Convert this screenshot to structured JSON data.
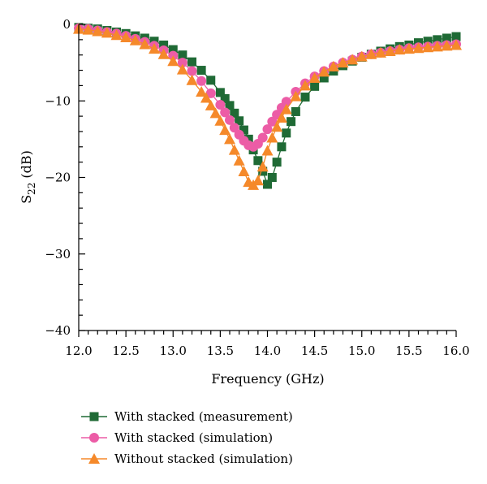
{
  "chart_data": {
    "type": "scatter",
    "xlabel": "Frequency (GHz)",
    "ylabel_base": "S",
    "ylabel_sub": "22",
    "ylabel_unit": " (dB)",
    "xlim": [
      12.0,
      16.0
    ],
    "ylim": [
      -40,
      0
    ],
    "x_ticks": [
      12.0,
      12.5,
      13.0,
      13.5,
      14.0,
      14.5,
      15.0,
      15.5,
      16.0
    ],
    "x_tick_labels": [
      "12.0",
      "12.5",
      "13.0",
      "13.5",
      "14.0",
      "14.5",
      "15.0",
      "15.5",
      "16.0"
    ],
    "y_ticks": [
      0,
      -10,
      -20,
      -30,
      -40
    ],
    "y_tick_labels": [
      "0",
      "−10",
      "−20",
      "−30",
      "−40"
    ],
    "grid": false,
    "legend_position": "bottom",
    "series": [
      {
        "name": "With stacked (measurement)",
        "marker": "square",
        "color": "#1f6a35",
        "x": [
          12.0,
          12.1,
          12.2,
          12.3,
          12.4,
          12.5,
          12.6,
          12.7,
          12.8,
          12.9,
          13.0,
          13.1,
          13.2,
          13.3,
          13.4,
          13.5,
          13.55,
          13.6,
          13.65,
          13.7,
          13.75,
          13.8,
          13.85,
          13.9,
          13.95,
          14.0,
          14.05,
          14.1,
          14.15,
          14.2,
          14.25,
          14.3,
          14.4,
          14.5,
          14.6,
          14.7,
          14.8,
          14.9,
          15.0,
          15.1,
          15.2,
          15.3,
          15.4,
          15.5,
          15.6,
          15.7,
          15.8,
          15.9,
          16.0
        ],
        "y": [
          -0.4,
          -0.5,
          -0.6,
          -0.8,
          -1.0,
          -1.2,
          -1.5,
          -1.8,
          -2.2,
          -2.7,
          -3.3,
          -4.0,
          -4.9,
          -6.0,
          -7.3,
          -8.9,
          -9.7,
          -10.6,
          -11.6,
          -12.6,
          -13.8,
          -15.0,
          -16.4,
          -17.8,
          -19.2,
          -20.9,
          -20.0,
          -18.0,
          -16.0,
          -14.2,
          -12.7,
          -11.4,
          -9.5,
          -8.1,
          -7.0,
          -6.1,
          -5.4,
          -4.8,
          -4.3,
          -3.9,
          -3.5,
          -3.2,
          -2.9,
          -2.7,
          -2.4,
          -2.2,
          -2.0,
          -1.8,
          -1.6
        ]
      },
      {
        "name": "With stacked (simulation)",
        "marker": "circle",
        "color": "#ec5ca6",
        "x": [
          12.0,
          12.1,
          12.2,
          12.3,
          12.4,
          12.5,
          12.6,
          12.7,
          12.8,
          12.9,
          13.0,
          13.1,
          13.2,
          13.3,
          13.4,
          13.5,
          13.55,
          13.6,
          13.65,
          13.7,
          13.75,
          13.8,
          13.85,
          13.9,
          13.95,
          14.0,
          14.05,
          14.1,
          14.15,
          14.2,
          14.3,
          14.4,
          14.5,
          14.6,
          14.7,
          14.8,
          14.9,
          15.0,
          15.1,
          15.2,
          15.3,
          15.4,
          15.5,
          15.6,
          15.7,
          15.8,
          15.9,
          16.0
        ],
        "y": [
          -0.5,
          -0.6,
          -0.8,
          -1.0,
          -1.2,
          -1.5,
          -1.9,
          -2.3,
          -2.8,
          -3.4,
          -4.1,
          -5.0,
          -6.1,
          -7.4,
          -9.0,
          -10.5,
          -11.5,
          -12.5,
          -13.5,
          -14.4,
          -15.2,
          -15.8,
          -16.0,
          -15.6,
          -14.8,
          -13.7,
          -12.7,
          -11.8,
          -10.9,
          -10.1,
          -8.8,
          -7.7,
          -6.8,
          -6.1,
          -5.5,
          -5.0,
          -4.6,
          -4.2,
          -3.9,
          -3.7,
          -3.5,
          -3.3,
          -3.1,
          -3.0,
          -2.9,
          -2.8,
          -2.7,
          -2.6
        ]
      },
      {
        "name": "Without stacked (simulation)",
        "marker": "triangle",
        "color": "#f5892a",
        "x": [
          12.0,
          12.1,
          12.2,
          12.3,
          12.4,
          12.5,
          12.6,
          12.7,
          12.8,
          12.9,
          13.0,
          13.1,
          13.2,
          13.3,
          13.35,
          13.4,
          13.45,
          13.5,
          13.55,
          13.6,
          13.65,
          13.7,
          13.75,
          13.8,
          13.85,
          13.9,
          13.95,
          14.0,
          14.05,
          14.1,
          14.15,
          14.2,
          14.3,
          14.4,
          14.5,
          14.6,
          14.7,
          14.8,
          14.9,
          15.0,
          15.1,
          15.2,
          15.3,
          15.4,
          15.5,
          15.6,
          15.7,
          15.8,
          15.9,
          16.0
        ],
        "y": [
          -0.6,
          -0.7,
          -0.9,
          -1.1,
          -1.4,
          -1.7,
          -2.1,
          -2.6,
          -3.2,
          -3.9,
          -4.8,
          -5.9,
          -7.3,
          -8.8,
          -9.6,
          -10.6,
          -11.6,
          -12.6,
          -13.8,
          -15.0,
          -16.4,
          -17.8,
          -19.2,
          -20.6,
          -21.0,
          -20.4,
          -18.6,
          -16.5,
          -14.8,
          -13.4,
          -12.2,
          -11.1,
          -9.4,
          -8.0,
          -7.0,
          -6.2,
          -5.5,
          -5.0,
          -4.6,
          -4.2,
          -3.9,
          -3.7,
          -3.5,
          -3.3,
          -3.2,
          -3.1,
          -3.0,
          -2.9,
          -2.8,
          -2.7
        ]
      }
    ]
  }
}
